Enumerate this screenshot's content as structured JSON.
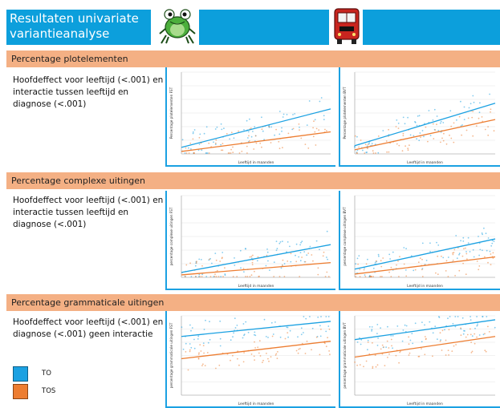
{
  "header": {
    "title": "Resultaten univariate\nvariantieanalyse",
    "left_mascot_icon": "frog-icon",
    "right_mascot_icon": "red-bus-icon",
    "accent_color": "#0c9fdc"
  },
  "sections": [
    {
      "label": "Percentage plotelementen",
      "description": "Hoofdeffect voor leeftijd (<.001) en interactie tussen leeftijd en diagnose (<.001)",
      "charts": [
        {
          "ylabel": "Percentage plotelementen FST",
          "xlabel": "Leeftijd in maanden"
        },
        {
          "ylabel": "Percentage plotelementen BVT",
          "xlabel": "Leeftijd in maanden"
        }
      ]
    },
    {
      "label": "Percentage complexe uitingen",
      "description": "Hoofdeffect voor leeftijd (<.001) en interactie tussen leeftijd en diagnose (<.001)",
      "charts": [
        {
          "ylabel": "percentage complexe uitingen FST",
          "xlabel": "Leeftijd in maanden"
        },
        {
          "ylabel": "percentage complexe uitingen BVT",
          "xlabel": "Leeftijd in maanden"
        }
      ]
    },
    {
      "label": "Percentage grammaticale uitingen",
      "description": "Hoofdeffect voor leeftijd (<.001) en diagnose (<.001) geen interactie",
      "charts": [
        {
          "ylabel": "percentage grammaticale uitingen FST",
          "xlabel": "Leeftijd in maanden"
        },
        {
          "ylabel": "percentage grammaticale uitingen BVT",
          "xlabel": "Leeftijd in maanden"
        }
      ]
    }
  ],
  "legend": [
    {
      "label": "TO",
      "color": "#1ba1e2"
    },
    {
      "label": "TOS",
      "color": "#ed7d31"
    }
  ],
  "colors": {
    "to_series": "#1ba1e2",
    "tos_series": "#ed7d31",
    "section_bar": "#f4b084"
  },
  "chart_data": [
    {
      "type": "scatter",
      "title": "",
      "xlabel": "Leeftijd in maanden",
      "ylabel": "Percentage plotelementen FST",
      "series": [
        {
          "name": "TO",
          "fit_y": [
            0.08,
            0.55
          ]
        },
        {
          "name": "TOS",
          "fit_y": [
            0.03,
            0.27
          ]
        }
      ],
      "ylim": [
        0,
        1
      ]
    },
    {
      "type": "scatter",
      "title": "",
      "xlabel": "Leeftijd in maanden",
      "ylabel": "Percentage plotelementen BVT",
      "series": [
        {
          "name": "TO",
          "fit_y": [
            0.1,
            0.62
          ]
        },
        {
          "name": "TOS",
          "fit_y": [
            0.05,
            0.42
          ]
        }
      ],
      "ylim": [
        0,
        1
      ]
    },
    {
      "type": "scatter",
      "title": "",
      "xlabel": "Leeftijd in maanden",
      "ylabel": "percentage complexe uitingen FST",
      "series": [
        {
          "name": "TO",
          "fit_y": [
            0.06,
            0.4
          ]
        },
        {
          "name": "TOS",
          "fit_y": [
            0.03,
            0.18
          ]
        }
      ],
      "ylim": [
        0,
        1
      ]
    },
    {
      "type": "scatter",
      "title": "",
      "xlabel": "Leeftijd in maanden",
      "ylabel": "percentage complexe uitingen BVT",
      "series": [
        {
          "name": "TO",
          "fit_y": [
            0.1,
            0.47
          ]
        },
        {
          "name": "TOS",
          "fit_y": [
            0.04,
            0.25
          ]
        }
      ],
      "ylim": [
        0,
        1
      ]
    },
    {
      "type": "scatter",
      "title": "",
      "xlabel": "Leeftijd in maanden",
      "ylabel": "percentage grammaticale uitingen FST",
      "series": [
        {
          "name": "TO",
          "fit_y": [
            0.74,
            0.93
          ]
        },
        {
          "name": "TOS",
          "fit_y": [
            0.46,
            0.68
          ]
        }
      ],
      "ylim": [
        0,
        1
      ]
    },
    {
      "type": "scatter",
      "title": "",
      "xlabel": "Leeftijd in maanden",
      "ylabel": "percentage grammaticale uitingen BVT",
      "series": [
        {
          "name": "TO",
          "fit_y": [
            0.7,
            0.95
          ]
        },
        {
          "name": "TOS",
          "fit_y": [
            0.48,
            0.74
          ]
        }
      ],
      "ylim": [
        0,
        1
      ]
    }
  ]
}
